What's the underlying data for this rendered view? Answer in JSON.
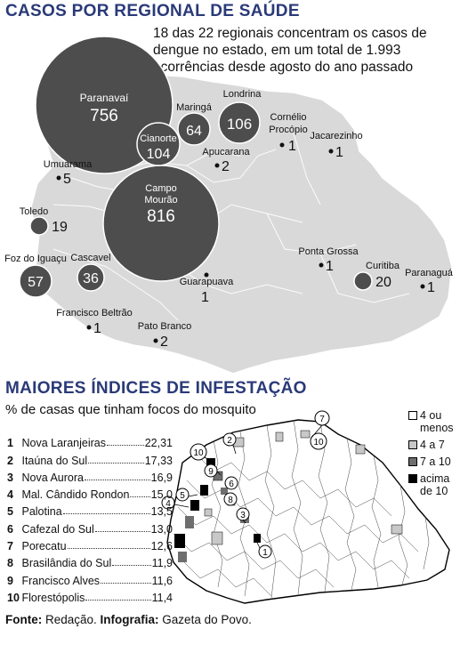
{
  "section1": {
    "title": "CASOS POR REGIONAL DE SAÚDE",
    "intro": "18 das 22 regionais concentram os casos de dengue no estado, em um total de 1.993 ocorrências desde agosto do ano passado"
  },
  "regions": [
    {
      "name": "Paranavaí",
      "value": "756"
    },
    {
      "name": "Londrina",
      "value": "106"
    },
    {
      "name": "Maringá",
      "value": "64"
    },
    {
      "name": "Cianorte",
      "value": "104"
    },
    {
      "name": "Cornélio Procópio",
      "value": "1"
    },
    {
      "name": "Jacarezinho",
      "value": "1"
    },
    {
      "name": "Umuarama",
      "value": "5"
    },
    {
      "name": "Apucarana",
      "value": "2"
    },
    {
      "name": "Campo Mourão",
      "value": "816"
    },
    {
      "name": "Toledo",
      "value": "19"
    },
    {
      "name": "Foz do Iguaçu",
      "value": "57"
    },
    {
      "name": "Cascavel",
      "value": "36"
    },
    {
      "name": "Ponta Grossa",
      "value": "1"
    },
    {
      "name": "Curitiba",
      "value": "20"
    },
    {
      "name": "Paranaguá",
      "value": "1"
    },
    {
      "name": "Guarapuava",
      "value": "1"
    },
    {
      "name": "Francisco Beltrão",
      "value": "1"
    },
    {
      "name": "Pato Branco",
      "value": "2"
    }
  ],
  "section2": {
    "title": "MAIORES ÍNDICES DE INFESTAÇÃO",
    "subtitle": "% de casas que tinham focos do mosquito",
    "ranking": [
      {
        "n": "1",
        "name": "Nova Laranjeiras",
        "value": "22,31"
      },
      {
        "n": "2",
        "name": "Itaúna do Sul",
        "value": "17,33"
      },
      {
        "n": "3",
        "name": "Nova Aurora",
        "value": "16,9"
      },
      {
        "n": "4",
        "name": "Mal. Cândido Rondon",
        "value": "15,0"
      },
      {
        "n": "5",
        "name": "Palotina",
        "value": "13,5"
      },
      {
        "n": "6",
        "name": "Cafezal do Sul",
        "value": "13,0"
      },
      {
        "n": "7",
        "name": "Porecatu",
        "value": "12,6"
      },
      {
        "n": "8",
        "name": "Brasilândia do Sul",
        "value": "11,9"
      },
      {
        "n": "9",
        "name": "Francisco Alves",
        "value": "11,6"
      },
      {
        "n": "10",
        "name": "Florestópolis",
        "value": "11,4"
      }
    ],
    "legend": [
      {
        "label": "4 ou menos",
        "color": "#ffffff"
      },
      {
        "label": "4 a 7",
        "color": "#c8c8c8"
      },
      {
        "label": "7 a 10",
        "color": "#6e6e6e"
      },
      {
        "label": "acima de 10",
        "color": "#000000"
      }
    ]
  },
  "source": {
    "fonte_label": "Fonte:",
    "fonte_value": " Redação. ",
    "info_label": "Infografia:",
    "info_value": " Gazeta do Povo."
  },
  "colors": {
    "title": "#2a3a78",
    "map_fill": "#d9d9d9",
    "bubble": "#4d4d4d"
  }
}
